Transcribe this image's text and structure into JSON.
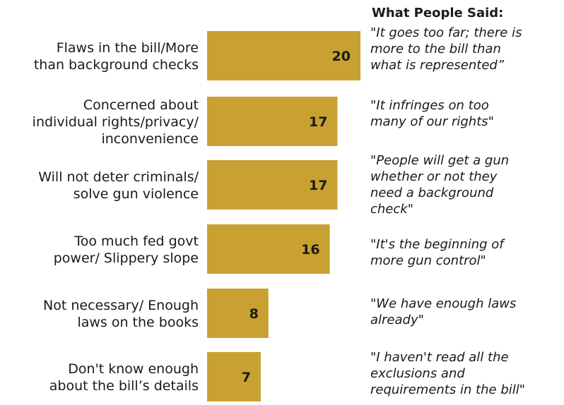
{
  "chart_data": {
    "type": "bar",
    "orientation": "horizontal",
    "bar_color": "#C9A132",
    "categories": [
      [
        "Flaws in the bill/More",
        "than background checks"
      ],
      [
        "Concerned about",
        "individual rights/privacy/",
        "inconvenience"
      ],
      [
        "Will not deter criminals/",
        "solve gun violence"
      ],
      [
        "Too much fed govt",
        "power/ Slippery slope"
      ],
      [
        "Not necessary/ Enough",
        "laws on the books"
      ],
      [
        "Don't know enough",
        "about the bill’s details"
      ]
    ],
    "values": [
      20,
      17,
      17,
      16,
      8,
      7
    ],
    "xlim": [
      0,
      20
    ],
    "grid": false,
    "legend": "none"
  },
  "sidebar": {
    "heading": "What People Said:",
    "quotes": [
      [
        "\"It goes too far; there is",
        "more to the bill than",
        "what is represented”"
      ],
      [
        "\"It infringes on too",
        "many of our rights\""
      ],
      [
        "\"People will get a gun",
        "whether or not they",
        "need a background",
        "check\""
      ],
      [
        "\"It's the beginning of",
        "more gun control\""
      ],
      [
        "\"We have enough laws",
        "already\""
      ],
      [
        "\"I haven't read all the",
        "exclusions and",
        "requirements in the bill\""
      ]
    ]
  }
}
